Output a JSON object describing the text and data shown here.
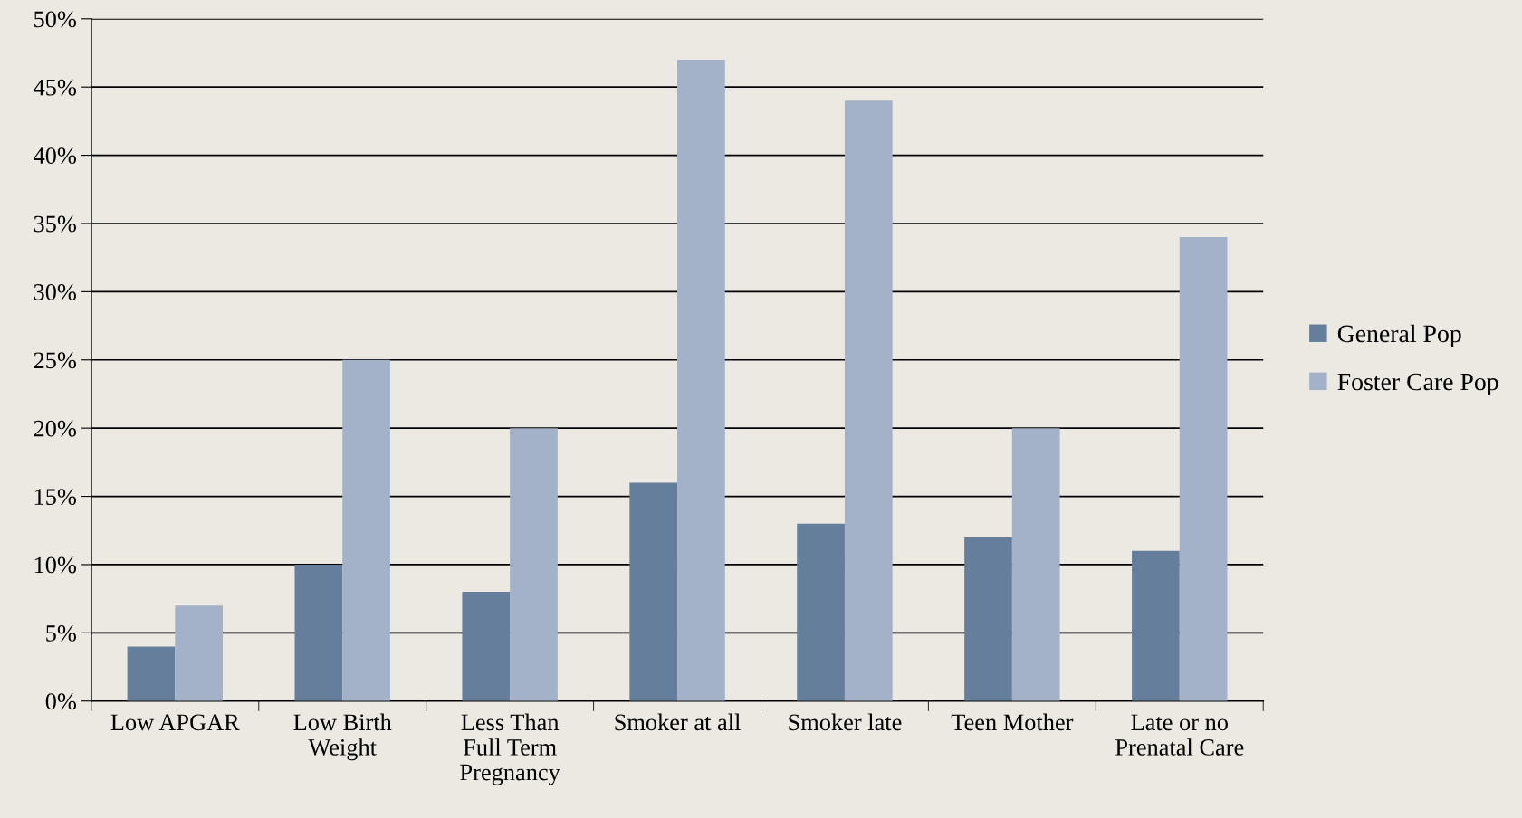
{
  "chart_data": {
    "type": "bar",
    "categories": [
      "Low APGAR",
      "Low Birth\nWeight",
      "Less Than\nFull Term\nPregnancy",
      "Smoker at all",
      "Smoker late",
      "Teen Mother",
      "Late or no\nPrenatal Care"
    ],
    "series": [
      {
        "name": "General Pop",
        "color": "#657e9b",
        "values": [
          4,
          10,
          8,
          16,
          13,
          12,
          11
        ]
      },
      {
        "name": "Foster Care Pop",
        "color": "#a3b2c8",
        "values": [
          7,
          25,
          20,
          47,
          44,
          20,
          34
        ]
      }
    ],
    "ylim": [
      0,
      50
    ],
    "yticks": [
      {
        "value": 0,
        "label": "0%"
      },
      {
        "value": 5,
        "label": "5%"
      },
      {
        "value": 10,
        "label": "10%"
      },
      {
        "value": 15,
        "label": "15%"
      },
      {
        "value": 20,
        "label": "20%"
      },
      {
        "value": 25,
        "label": "25%"
      },
      {
        "value": 30,
        "label": "30%"
      },
      {
        "value": 35,
        "label": "35%"
      },
      {
        "value": 40,
        "label": "40%"
      },
      {
        "value": 45,
        "label": "45%"
      },
      {
        "value": 50,
        "label": "50%"
      }
    ],
    "grid": "y",
    "legend": "right"
  }
}
